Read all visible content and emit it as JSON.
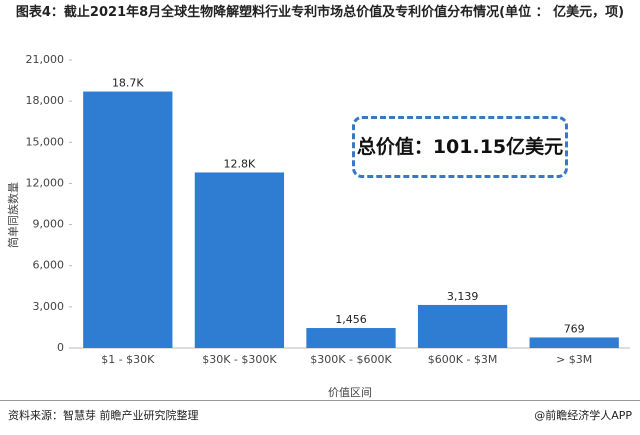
{
  "chart_data": {
    "type": "bar",
    "title": "图表4：截止2021年8月全球生物降解塑料行业专利市场总价值及专利价值分布情况(单位 ： 亿美元，项)",
    "y_label": "简单同族数量",
    "x_label": "价值区间",
    "annotation": "总价值：101.15亿美元",
    "source": "资料来源：智慧芽 前瞻产业研究院整理",
    "brand": "@前瞻经济学人APP",
    "categories": [
      "$1 - $30K",
      "$30K - $300K",
      "$300K - $600K",
      "$600K - $3M",
      "> $3M"
    ],
    "values": [
      18700,
      12800,
      1456,
      3139,
      769
    ],
    "value_labels": [
      "18.7K",
      "12.8K",
      "1,456",
      "3,139",
      "769"
    ],
    "color": "#2e7dd2",
    "ylim": [
      0,
      21000
    ],
    "yticks": [
      0,
      {
        "value": 3000,
        "label": "3,000"
      },
      {
        "value": 6000,
        "label": "6,000"
      },
      {
        "value": 9000,
        "label": "9,000"
      },
      {
        "value": 12000,
        "label": "12,000"
      },
      {
        "value": 15000,
        "label": "15,000"
      },
      {
        "value": 18000,
        "label": "18,000"
      },
      {
        "value": 21000,
        "label": "21,000"
      }
    ],
    "grid": false
  }
}
